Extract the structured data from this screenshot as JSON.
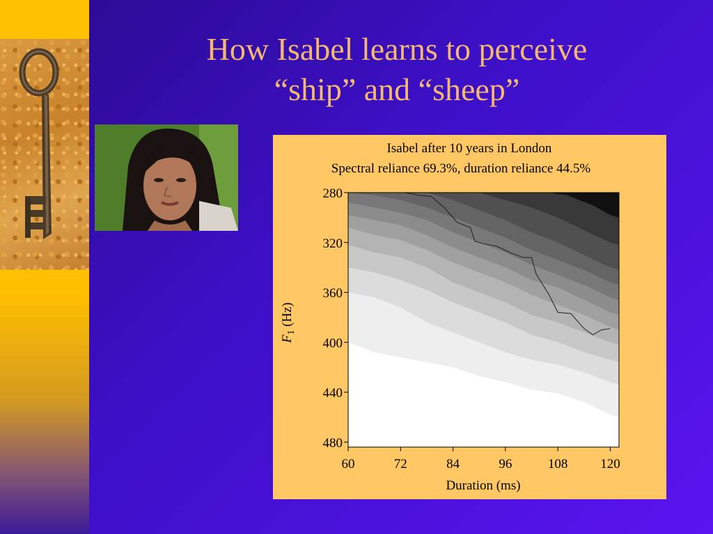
{
  "slide": {
    "title_line1": "How Isabel learns to perceive",
    "title_line2": "“ship” and “sheep”",
    "colors": {
      "background": "#3d10c8",
      "title": "#f4b870",
      "sidebar": "#ffbf00",
      "chart_panel": "#ffc864"
    },
    "images": {
      "left": "antique-key-photo",
      "portrait": "woman-portrait-photo"
    }
  },
  "chart_data": {
    "type": "heatmap",
    "title": "Isabel after 10 years in London",
    "subtitle": "Spectral reliance 69.3%, duration reliance 44.5%",
    "xlabel": "Duration (ms)",
    "ylabel_italic": "F",
    "ylabel_sub": "1",
    "ylabel_rest": " (Hz)",
    "xlim": [
      60,
      122
    ],
    "ylim": [
      280,
      484
    ],
    "y_inverted": true,
    "x_ticks": [
      "60",
      "72",
      "84",
      "96",
      "108",
      "120"
    ],
    "y_ticks": [
      "280",
      "320",
      "360",
      "400",
      "440",
      "480"
    ],
    "shade_levels": [
      "#ffffff",
      "#eeeeee",
      "#dcdcdc",
      "#c8c8c8",
      "#b4b4b4",
      "#a0a0a0",
      "#8c8c8c",
      "#787878",
      "#646464",
      "#505050",
      "#383838",
      "#101010"
    ],
    "level_boundaries": [
      {
        "x": [
          60,
          66,
          72,
          78,
          84,
          90,
          96,
          102,
          108,
          114,
          120,
          122
        ],
        "y": [
          400,
          408,
          412,
          416,
          420,
          427,
          432,
          438,
          441,
          448,
          458,
          460
        ]
      },
      {
        "x": [
          60,
          66,
          72,
          78,
          84,
          90,
          96,
          102,
          108,
          114,
          120,
          122
        ],
        "y": [
          360,
          364,
          372,
          384,
          392,
          400,
          408,
          414,
          418,
          424,
          432,
          434
        ]
      },
      {
        "x": [
          60,
          66,
          72,
          78,
          84,
          90,
          96,
          102,
          108,
          114,
          120,
          122
        ],
        "y": [
          340,
          344,
          350,
          358,
          368,
          376,
          384,
          394,
          400,
          408,
          414,
          416
        ]
      },
      {
        "x": [
          60,
          66,
          72,
          78,
          84,
          90,
          96,
          102,
          108,
          114,
          120,
          122
        ],
        "y": [
          322,
          328,
          332,
          340,
          352,
          360,
          368,
          378,
          384,
          392,
          400,
          402
        ]
      },
      {
        "x": [
          60,
          66,
          72,
          78,
          84,
          90,
          96,
          102,
          108,
          114,
          120,
          122
        ],
        "y": [
          308,
          314,
          318,
          326,
          336,
          344,
          352,
          362,
          370,
          378,
          388,
          390
        ]
      },
      {
        "x": [
          60,
          66,
          72,
          78,
          84,
          90,
          96,
          102,
          108,
          114,
          120,
          122
        ],
        "y": [
          298,
          302,
          306,
          314,
          324,
          332,
          340,
          350,
          356,
          366,
          376,
          378
        ]
      },
      {
        "x": [
          60,
          66,
          72,
          78,
          84,
          90,
          96,
          102,
          108,
          114,
          120,
          122
        ],
        "y": [
          288,
          292,
          296,
          302,
          312,
          320,
          328,
          338,
          346,
          354,
          364,
          366
        ]
      },
      {
        "x": [
          60,
          66,
          72,
          78,
          84,
          90,
          96,
          102,
          108,
          114,
          120,
          122
        ],
        "y": [
          280,
          282,
          286,
          292,
          300,
          308,
          316,
          326,
          334,
          342,
          352,
          354
        ]
      },
      {
        "x": [
          72,
          78,
          84,
          90,
          96,
          102,
          108,
          114,
          120,
          122
        ],
        "y": [
          280,
          280,
          286,
          294,
          302,
          312,
          320,
          330,
          340,
          342
        ]
      },
      {
        "x": [
          90,
          96,
          102,
          108,
          114,
          120,
          122
        ],
        "y": [
          280,
          286,
          292,
          300,
          310,
          320,
          322
        ]
      },
      {
        "x": [
          106,
          110,
          116,
          120,
          122
        ],
        "y": [
          280,
          282,
          290,
          298,
          300
        ]
      }
    ],
    "boundary_line": {
      "x": [
        73,
        76,
        79,
        82,
        85,
        88,
        89,
        91,
        94,
        97,
        100,
        102,
        103,
        106,
        108,
        111,
        114,
        116,
        118,
        120
      ],
      "y": [
        280,
        282,
        283,
        292,
        304,
        308,
        319,
        321,
        323,
        328,
        332,
        332,
        345,
        362,
        376,
        377,
        389,
        394,
        390,
        389
      ]
    }
  }
}
